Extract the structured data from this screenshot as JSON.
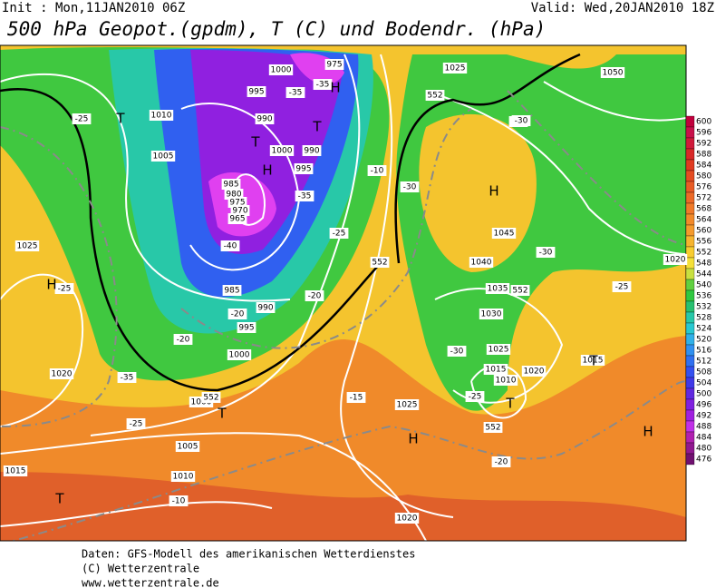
{
  "header": {
    "init": "Init : Mon,11JAN2010 06Z",
    "valid": "Valid: Wed,20JAN2010 18Z",
    "title": "500 hPa Geopot.(gpdm), T (C) und Bodendr. (hPa)"
  },
  "footer": [
    "Daten: GFS-Modell des amerikanischen Wetterdienstes",
    "(C) Wetterzentrale",
    "www.wetterzentrale.de"
  ],
  "legend": [
    {
      "label": "600",
      "color": "#c0003c"
    },
    {
      "label": "596",
      "color": "#c8104a"
    },
    {
      "label": "592",
      "color": "#d01a3a"
    },
    {
      "label": "588",
      "color": "#d82828"
    },
    {
      "label": "584",
      "color": "#e03a20"
    },
    {
      "label": "580",
      "color": "#e44c22"
    },
    {
      "label": "576",
      "color": "#e85c26"
    },
    {
      "label": "572",
      "color": "#ec6a28"
    },
    {
      "label": "568",
      "color": "#f07a2a"
    },
    {
      "label": "564",
      "color": "#f28a2a"
    },
    {
      "label": "560",
      "color": "#f49a2c"
    },
    {
      "label": "556",
      "color": "#f6b42e"
    },
    {
      "label": "552",
      "color": "#f8cc30"
    },
    {
      "label": "548",
      "color": "#f4e038"
    },
    {
      "label": "544",
      "color": "#c8e040"
    },
    {
      "label": "540",
      "color": "#60d040"
    },
    {
      "label": "536",
      "color": "#30c840"
    },
    {
      "label": "532",
      "color": "#28c070"
    },
    {
      "label": "528",
      "color": "#28c8a8"
    },
    {
      "label": "524",
      "color": "#28c8d0"
    },
    {
      "label": "520",
      "color": "#30b0e8"
    },
    {
      "label": "516",
      "color": "#3090f0"
    },
    {
      "label": "512",
      "color": "#3070f0"
    },
    {
      "label": "508",
      "color": "#3450f0"
    },
    {
      "label": "504",
      "color": "#4038e8"
    },
    {
      "label": "500",
      "color": "#6028e0"
    },
    {
      "label": "496",
      "color": "#8020e0"
    },
    {
      "label": "492",
      "color": "#a020e0"
    },
    {
      "label": "488",
      "color": "#c030e8"
    },
    {
      "label": "484",
      "color": "#b020b0"
    },
    {
      "label": "480",
      "color": "#901890"
    },
    {
      "label": "476",
      "color": "#701070"
    }
  ],
  "map": {
    "labels": [
      "1000",
      "995",
      "990",
      "1000",
      "990",
      "995",
      "985",
      "980",
      "975",
      "970",
      "965",
      "985",
      "990",
      "995",
      "1000",
      "975",
      "1010",
      "1005",
      "1025",
      "1020",
      "1015",
      "1005",
      "1010",
      "1000",
      "1015",
      "1025",
      "1025",
      "1040",
      "1045",
      "1035",
      "1030",
      "1025",
      "1015",
      "1010",
      "1020",
      "1015",
      "1050",
      "1020",
      "1020",
      "-25",
      "-35",
      "-35",
      "-40",
      "-30",
      "-35",
      "-30",
      "-25",
      "-30",
      "-20",
      "-20",
      "-25",
      "-25",
      "-20",
      "-30",
      "-25",
      "-15",
      "-10",
      "-20",
      "-25",
      "-35",
      "-10",
      "-30",
      "552",
      "552",
      "552",
      "552",
      "552"
    ],
    "centers": [
      "T",
      "T",
      "H",
      "T",
      "H",
      "H",
      "T",
      "H",
      "T",
      "T",
      "H",
      "T",
      "H"
    ]
  }
}
